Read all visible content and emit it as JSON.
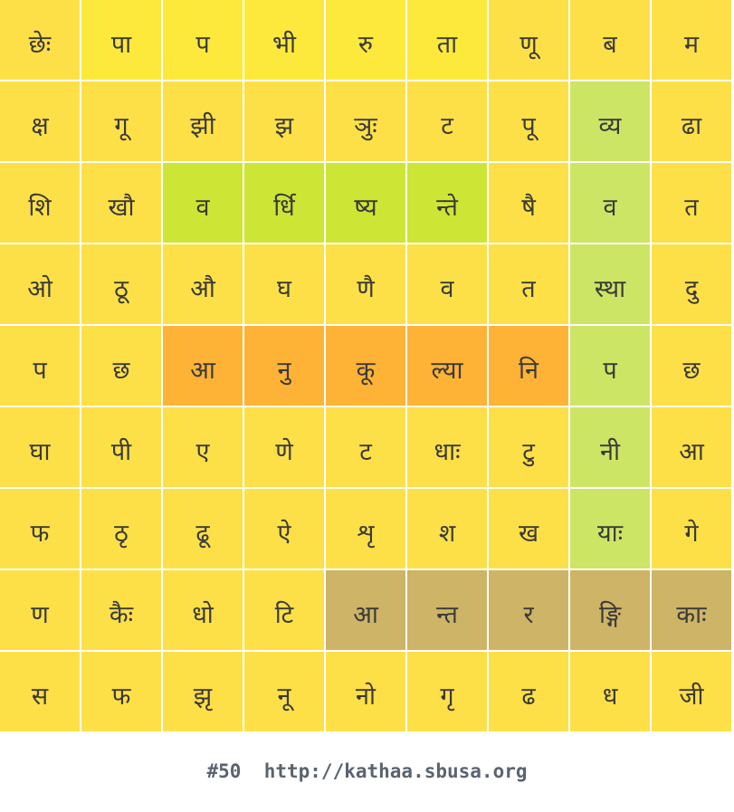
{
  "grid": {
    "rows": [
      [
        "छेः",
        "पा",
        "प",
        "भी",
        "रु",
        "ता",
        "णू",
        "ब",
        "म"
      ],
      [
        "क्ष",
        "गू",
        "झी",
        "झ",
        "ञुः",
        "ट",
        "पू",
        "व्य",
        "ढा"
      ],
      [
        "शि",
        "खौ",
        "व",
        "र्धि",
        "ष्य",
        "न्ते",
        "षै",
        "व",
        "त"
      ],
      [
        "ओ",
        "ठू",
        "औ",
        "घ",
        "णै",
        "व",
        "त",
        "स्था",
        "दु"
      ],
      [
        "प",
        "छ",
        "आ",
        "नु",
        "कू",
        "ल्या",
        "नि",
        "प",
        "छ"
      ],
      [
        "घा",
        "पी",
        "ए",
        "णे",
        "ट",
        "धाः",
        "टु",
        "नी",
        "आ"
      ],
      [
        "फ",
        "ठृ",
        "ढू",
        "ऐ",
        "शृ",
        "श",
        "ख",
        "याः",
        "गे"
      ],
      [
        "ण",
        "कैः",
        "धो",
        "टि",
        "आ",
        "न्त",
        "र",
        "ङ्गि",
        "काः"
      ],
      [
        "स",
        "फ",
        "झृ",
        "नू",
        "नो",
        "गृ",
        "ढ",
        "ध",
        "जी"
      ]
    ],
    "colors": [
      [
        "#fde047",
        "#fde93c",
        "#fde93c",
        "#fde93c",
        "#fde93c",
        "#fde93c",
        "#fde047",
        "#fde047",
        "#fde047"
      ],
      [
        "#fde047",
        "#fde047",
        "#fde047",
        "#fde047",
        "#fde047",
        "#fde047",
        "#fde047",
        "#cde565",
        "#fde047"
      ],
      [
        "#fde047",
        "#fde047",
        "#cde635",
        "#cde635",
        "#cde635",
        "#cde635",
        "#fde047",
        "#cde565",
        "#fde047"
      ],
      [
        "#fde047",
        "#fde047",
        "#fde047",
        "#fde047",
        "#fde047",
        "#fde047",
        "#fde047",
        "#cde565",
        "#fde047"
      ],
      [
        "#fde047",
        "#fde047",
        "#feb336",
        "#feb336",
        "#feb336",
        "#feb336",
        "#feb336",
        "#cde565",
        "#fde047"
      ],
      [
        "#fde047",
        "#fde047",
        "#fde047",
        "#fde047",
        "#fde047",
        "#fde047",
        "#fde047",
        "#cde565",
        "#fde047"
      ],
      [
        "#fde047",
        "#fde047",
        "#fde047",
        "#fde047",
        "#fde047",
        "#fde047",
        "#fde047",
        "#cde565",
        "#fde047"
      ],
      [
        "#fde047",
        "#fde047",
        "#fde047",
        "#fde047",
        "#cdb466",
        "#cdb466",
        "#cdb466",
        "#cdb466",
        "#cdb466"
      ],
      [
        "#fde047",
        "#fde047",
        "#fde047",
        "#fde047",
        "#fde047",
        "#fde047",
        "#fde047",
        "#fde047",
        "#fde047"
      ]
    ]
  },
  "footer": {
    "puzzle_number": "#50",
    "url": "http://kathaa.sbusa.org"
  }
}
